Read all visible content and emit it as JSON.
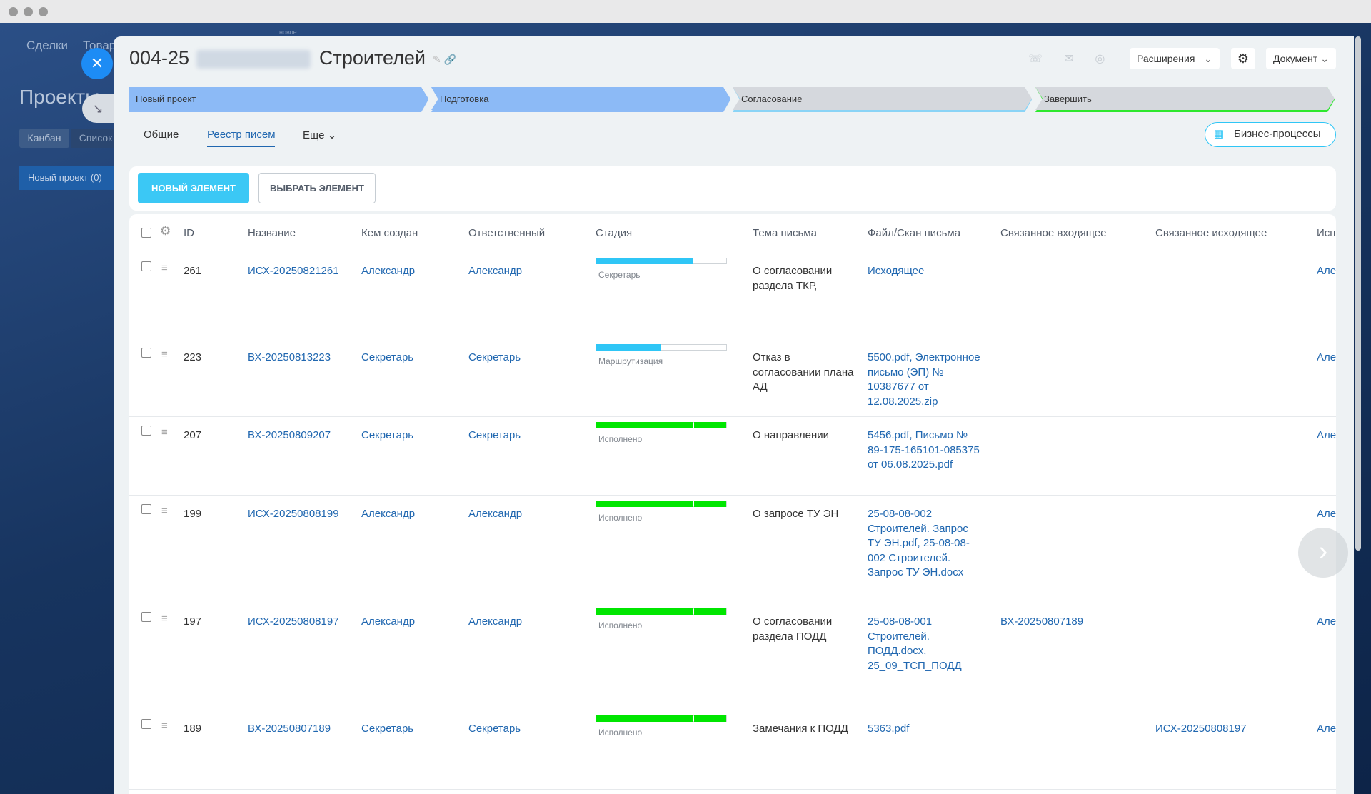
{
  "left_nav": {
    "menu": [
      "Сделки",
      "Товары"
    ],
    "section_title": "Проекты",
    "views": [
      "Канбан",
      "Список"
    ],
    "column": "Новый проект (0)",
    "badge": "новое"
  },
  "header": {
    "title_id": "004-25",
    "title_name": "Строителей",
    "buttons": [
      "Расширения",
      "Документ"
    ]
  },
  "stages": [
    {
      "label": "Новый проект",
      "color": "#8cbaf6",
      "line": "#8cbaf6"
    },
    {
      "label": "Подготовка",
      "color": "#8cbaf6",
      "line": "#8cbaf6"
    },
    {
      "label": "Согласование",
      "color": "#d5d8dd",
      "line": "#8ad4f6"
    },
    {
      "label": "Завершить",
      "color": "#d5d8dd",
      "line": "#2ee82e"
    }
  ],
  "tabs": [
    "Общие",
    "Реестр писем",
    "Еще"
  ],
  "business_button": "Бизнес-процессы",
  "actions": [
    "НОВЫЙ ЭЛЕМЕНТ",
    "ВЫБРАТЬ ЭЛЕМЕНТ"
  ],
  "table": {
    "columns": [
      "ID",
      "Название",
      "Кем создан",
      "Ответственный",
      "Стадия",
      "Тема письма",
      "Файл/Скан письма",
      "Связанное входящее",
      "Связанное исходящее",
      "Исп"
    ],
    "rows": [
      {
        "id": 261,
        "name": "ИСХ-20250821261",
        "created_by": "Александр",
        "responsible": "Александр",
        "stage": "Секретарь",
        "bar": {
          "color": "#2fc6f6",
          "segments_filled": 3
        },
        "topic": "О согласовании раздела ТКР,",
        "files": "Исходящее",
        "executor": "Алек"
      },
      {
        "id": 223,
        "name": "ВХ-20250813223",
        "created_by": "Секретарь",
        "responsible": "Секретарь",
        "stage": "Маршрутизация",
        "bar": {
          "color": "#2fc6f6",
          "segments_filled": 2
        },
        "topic": "Отказ в согласовании плана АД",
        "files": "5500.pdf, Электронное письмо (ЭП) № 10387677 от 12.08.2025.zip",
        "executor": "Алек"
      },
      {
        "id": 207,
        "name": "ВХ-20250809207",
        "created_by": "Секретарь",
        "responsible": "Секретарь",
        "stage": "Исполнено",
        "bar": {
          "color": "#00e600",
          "segments_filled": 4
        },
        "topic": "О направлении",
        "files": "5456.pdf, Письмо № 89-175-165101-085375 от 06.08.2025.pdf",
        "executor": "Алек"
      },
      {
        "id": 199,
        "name": "ИСХ-20250808199",
        "created_by": "Александр",
        "responsible": "Александр",
        "stage": "Исполнено",
        "bar": {
          "color": "#00e600",
          "segments_filled": 4
        },
        "topic": "О запросе ТУ ЭН",
        "files": "25-08-08-002 Строителей. Запрос ТУ ЭН.pdf, 25-08-08-002 Строителей. Запрос ТУ ЭН.docx",
        "executor": "Алек"
      },
      {
        "id": 197,
        "name": "ИСХ-20250808197",
        "created_by": "Александр",
        "responsible": "Александр",
        "stage": "Исполнено",
        "bar": {
          "color": "#00e600",
          "segments_filled": 4
        },
        "topic": "О согласовании раздела ПОДД",
        "files": "25-08-08-001 Строителей. ПОДД.docx, 25_09_ТСП_ПОДД",
        "incoming": "ВХ-20250807189",
        "executor": "Алек"
      },
      {
        "id": 189,
        "name": "ВХ-20250807189",
        "created_by": "Секретарь",
        "responsible": "Секретарь",
        "stage": "Исполнено",
        "bar": {
          "color": "#00e600",
          "segments_filled": 4
        },
        "topic": "Замечания к ПОДД",
        "files": "5363.pdf",
        "outgoing": "ИСХ-20250808197",
        "executor": "Алек"
      }
    ]
  }
}
